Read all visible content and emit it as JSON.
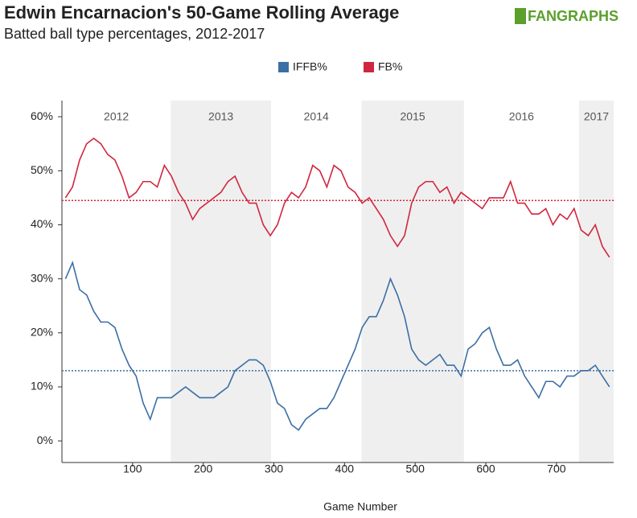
{
  "chart_data": {
    "type": "line",
    "title": "Edwin Encarnacion's 50-Game Rolling Average",
    "subtitle": "Batted ball type percentages, 2012-2017",
    "logo": "FANGRAPHS",
    "xlabel": "Game Number",
    "x": [
      5,
      15,
      25,
      35,
      45,
      55,
      65,
      75,
      85,
      95,
      105,
      115,
      125,
      135,
      145,
      155,
      165,
      175,
      185,
      195,
      205,
      215,
      225,
      235,
      245,
      255,
      265,
      275,
      285,
      295,
      305,
      315,
      325,
      335,
      345,
      355,
      365,
      375,
      385,
      395,
      405,
      415,
      425,
      435,
      445,
      455,
      465,
      475,
      485,
      495,
      505,
      515,
      525,
      535,
      545,
      555,
      565,
      575,
      585,
      595,
      605,
      615,
      625,
      635,
      645,
      655,
      665,
      675,
      685,
      695,
      705,
      715,
      725,
      735,
      745,
      755,
      765,
      775
    ],
    "series": [
      {
        "name": "IFFB%",
        "color": "#3b6ea5",
        "mean": 13,
        "values": [
          30,
          33,
          28,
          27,
          24,
          22,
          22,
          21,
          17,
          14,
          12,
          7,
          4,
          8,
          8,
          8,
          9,
          10,
          9,
          8,
          8,
          8,
          9,
          10,
          13,
          14,
          15,
          15,
          14,
          11,
          7,
          6,
          3,
          2,
          4,
          5,
          6,
          6,
          8,
          11,
          14,
          17,
          21,
          23,
          23,
          26,
          30,
          27,
          23,
          17,
          15,
          14,
          15,
          16,
          14,
          14,
          12,
          17,
          18,
          20,
          21,
          17,
          14,
          14,
          15,
          12,
          10,
          8,
          11,
          11,
          10,
          12,
          12,
          13,
          13,
          14,
          12,
          10
        ]
      },
      {
        "name": "FB%",
        "color": "#d0273e",
        "mean": 44.5,
        "values": [
          45,
          47,
          52,
          55,
          56,
          55,
          53,
          52,
          49,
          45,
          46,
          48,
          48,
          47,
          51,
          49,
          46,
          44,
          41,
          43,
          44,
          45,
          46,
          48,
          49,
          46,
          44,
          44,
          40,
          38,
          40,
          44,
          46,
          45,
          47,
          51,
          50,
          47,
          51,
          50,
          47,
          46,
          44,
          45,
          43,
          41,
          38,
          36,
          38,
          44,
          47,
          48,
          48,
          46,
          47,
          44,
          46,
          45,
          44,
          43,
          45,
          45,
          45,
          48,
          44,
          44,
          42,
          42,
          43,
          40,
          42,
          41,
          43,
          39,
          38,
          40,
          36,
          34
        ]
      }
    ],
    "bands": [
      {
        "label": "2012",
        "start": 0,
        "end": 154,
        "shaded": false
      },
      {
        "label": "2013",
        "start": 154,
        "end": 296,
        "shaded": true
      },
      {
        "label": "2014",
        "start": 296,
        "end": 424,
        "shaded": false
      },
      {
        "label": "2015",
        "start": 424,
        "end": 569,
        "shaded": true
      },
      {
        "label": "2016",
        "start": 569,
        "end": 732,
        "shaded": false
      },
      {
        "label": "2017",
        "start": 732,
        "end": 781,
        "shaded": true
      }
    ],
    "xlim": [
      0,
      781
    ],
    "ylim": [
      -4,
      63
    ],
    "xticks": [
      100,
      200,
      300,
      400,
      500,
      600,
      700
    ],
    "yticks": [
      {
        "value": 0,
        "label": "0%"
      },
      {
        "value": 10,
        "label": "10%"
      },
      {
        "value": 20,
        "label": "20%"
      },
      {
        "value": 30,
        "label": "30%"
      },
      {
        "value": 40,
        "label": "40%"
      },
      {
        "value": 50,
        "label": "50%"
      },
      {
        "value": 60,
        "label": "60%"
      }
    ],
    "legend": "top"
  }
}
